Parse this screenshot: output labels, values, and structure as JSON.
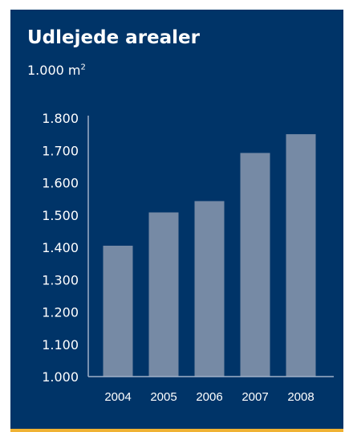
{
  "chart_data": {
    "type": "bar",
    "title": "Udlejede arealer",
    "unit": "1.000 m",
    "unit_superscript": "2",
    "categories": [
      "2004",
      "2005",
      "2006",
      "2007",
      "2008"
    ],
    "values": [
      1405,
      1508,
      1543,
      1692,
      1750
    ],
    "ylim": [
      1000,
      1800
    ],
    "yticks": [
      "1.000",
      "1.100",
      "1.200",
      "1.300",
      "1.400",
      "1.500",
      "1.600",
      "1.700",
      "1.800"
    ],
    "grid": false,
    "colors": {
      "background": "#003468",
      "bar": "#768aa5",
      "axis": "#9fb0c8",
      "text": "#ffffff",
      "accent_border": "#f0b232"
    }
  }
}
